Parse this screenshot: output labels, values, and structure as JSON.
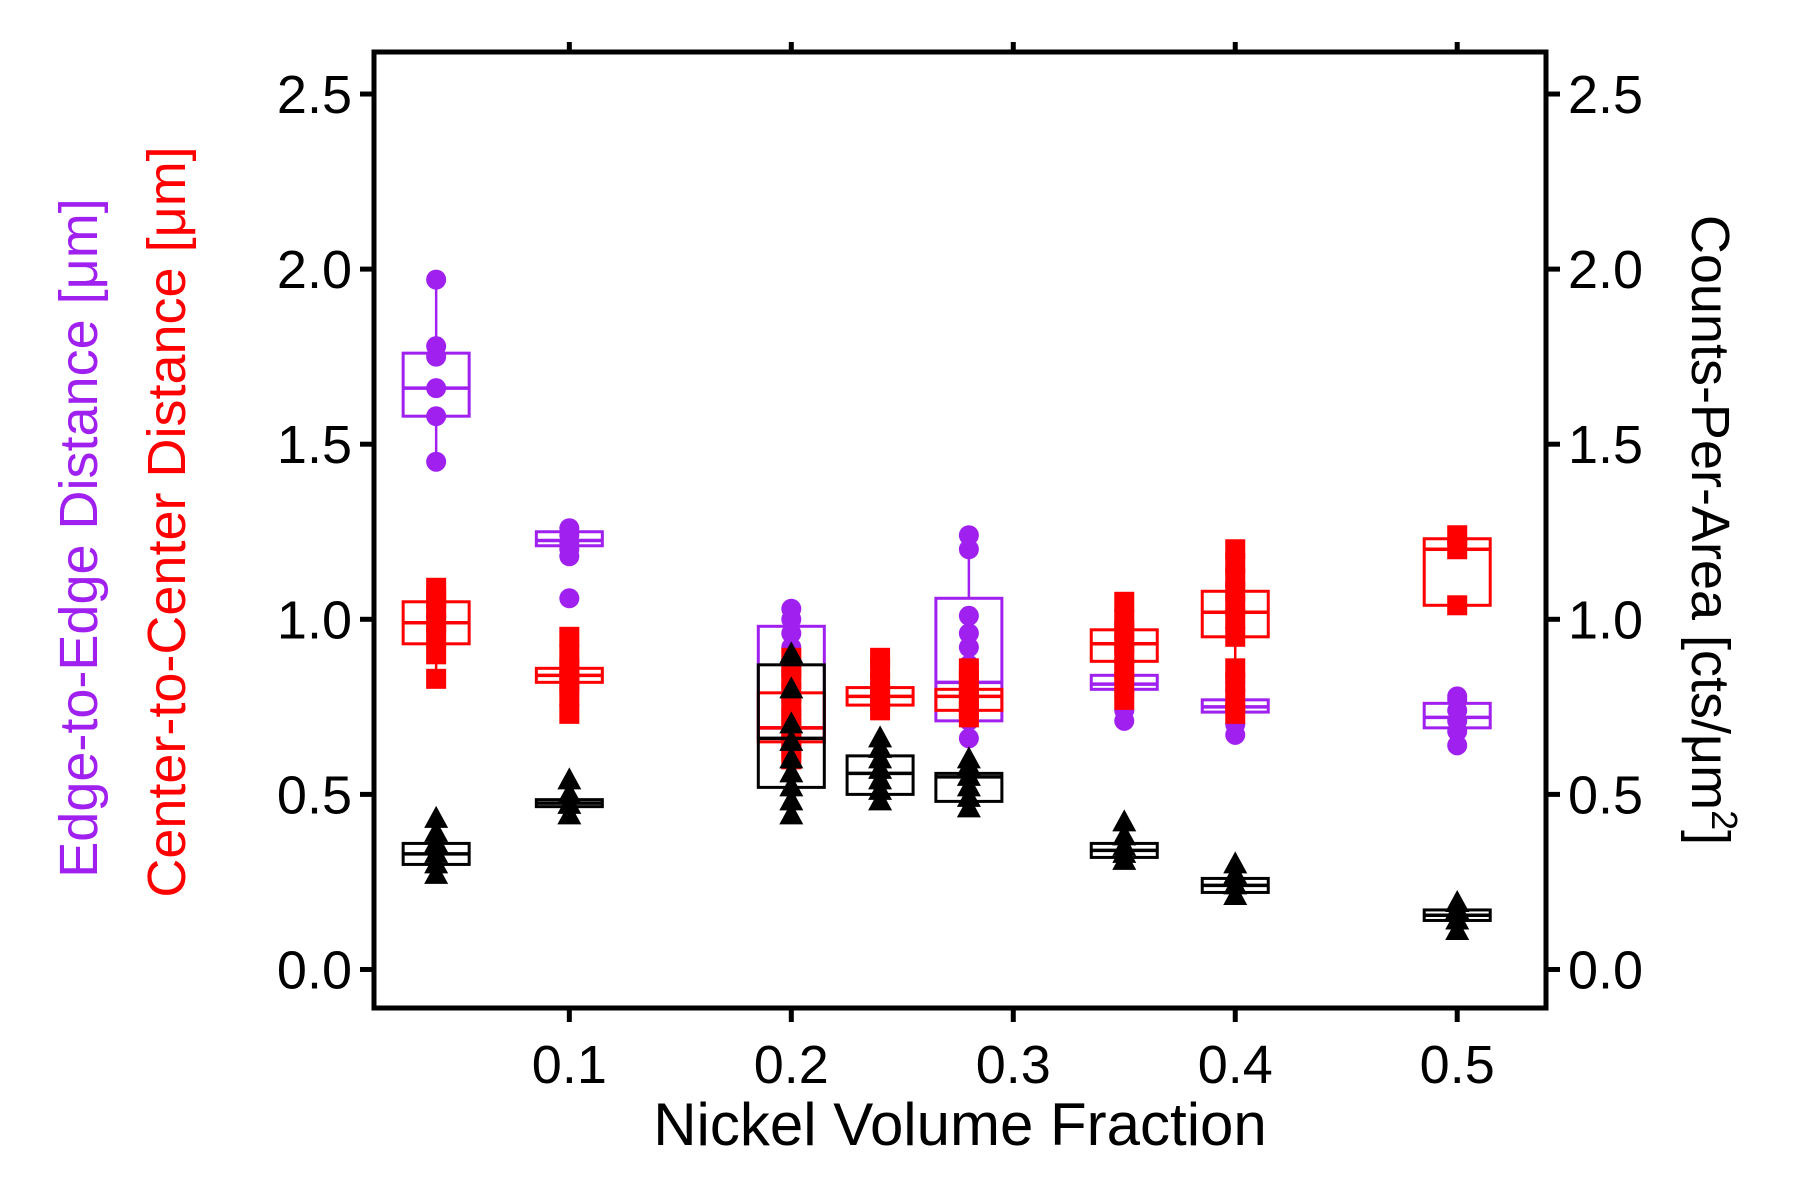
{
  "colors": {
    "edge": "#a020f0",
    "center": "#ff0000",
    "counts": "#000000",
    "frame": "#000000"
  },
  "labels": {
    "xlabel": "Nickel Volume Fraction",
    "ylabel_edge": "Edge-to-Edge Distance [μm]",
    "ylabel_center": "Center-to-Center Distance [μm]",
    "ylabel_right": "Counts-Per-Area [cts/μm",
    "ylabel_right_sup": "2",
    "ylabel_right_end": "]"
  },
  "chart_data": {
    "type": "box",
    "xlabel": "Nickel Volume Fraction",
    "ylabel_left": [
      "Edge-to-Edge Distance [μm]",
      "Center-to-Center Distance [μm]"
    ],
    "ylabel_right": "Counts-Per-Area [cts/μm2]",
    "xlim": [
      0.012,
      0.54
    ],
    "ylim": [
      -0.11,
      2.62
    ],
    "xticks": [
      0.1,
      0.2,
      0.3,
      0.4,
      0.5
    ],
    "xtick_labels": [
      "0.1",
      "0.2",
      "0.3",
      "0.4",
      "0.5"
    ],
    "yticks": [
      0.0,
      0.5,
      1.0,
      1.5,
      2.0,
      2.5
    ],
    "ytick_labels": [
      "0.0",
      "0.5",
      "1.0",
      "1.5",
      "2.0",
      "2.5"
    ],
    "grid": false,
    "series": [
      {
        "name": "Edge-to-Edge Distance [μm]",
        "color": "#a020f0",
        "marker": "circle",
        "boxes": [
          {
            "x": 0.04,
            "q1": 1.58,
            "median": 1.66,
            "q3": 1.76,
            "whisker_low": 1.45,
            "whisker_high": 1.97,
            "points": [
              1.45,
              1.58,
              1.66,
              1.75,
              1.78,
              1.97
            ]
          },
          {
            "x": 0.1,
            "q1": 1.21,
            "median": 1.225,
            "q3": 1.25,
            "whisker_low": 1.18,
            "whisker_high": 1.26,
            "points": [
              1.06,
              1.18,
              1.2,
              1.22,
              1.24,
              1.26
            ]
          },
          {
            "x": 0.2,
            "q1": 0.66,
            "median": 0.69,
            "q3": 0.98,
            "whisker_low": 0.59,
            "whisker_high": 1.03,
            "points": [
              0.88,
              0.92,
              0.96,
              1.0,
              1.03
            ]
          },
          {
            "x": 0.28,
            "q1": 0.71,
            "median": 0.82,
            "q3": 1.06,
            "whisker_low": 0.66,
            "whisker_high": 1.24,
            "points": [
              0.66,
              0.71,
              0.76,
              0.82,
              0.87,
              0.92,
              0.96,
              1.01,
              1.2,
              1.24
            ]
          },
          {
            "x": 0.35,
            "q1": 0.8,
            "median": 0.815,
            "q3": 0.84,
            "whisker_low": 0.71,
            "whisker_high": 0.86,
            "points": [
              0.71,
              0.74,
              0.78,
              0.8,
              0.82,
              0.86
            ]
          },
          {
            "x": 0.4,
            "q1": 0.735,
            "median": 0.75,
            "q3": 0.77,
            "whisker_low": 0.67,
            "whisker_high": 0.82,
            "points": [
              0.67,
              0.7,
              0.74,
              0.76,
              0.8,
              0.82
            ]
          },
          {
            "x": 0.5,
            "q1": 0.69,
            "median": 0.72,
            "q3": 0.76,
            "whisker_low": 0.64,
            "whisker_high": 0.78,
            "points": [
              0.64,
              0.68,
              0.71,
              0.74,
              0.77,
              0.78
            ]
          }
        ]
      },
      {
        "name": "Center-to-Center Distance [μm]",
        "color": "#ff0000",
        "marker": "square",
        "boxes": [
          {
            "x": 0.04,
            "q1": 0.93,
            "median": 0.99,
            "q3": 1.05,
            "whisker_low": 0.83,
            "whisker_high": 1.09,
            "points": [
              0.83,
              0.9,
              0.95,
              0.99,
              1.03,
              1.06,
              1.09
            ]
          },
          {
            "x": 0.1,
            "q1": 0.82,
            "median": 0.84,
            "q3": 0.86,
            "whisker_low": 0.73,
            "whisker_high": 0.95,
            "points": [
              0.73,
              0.78,
              0.82,
              0.84,
              0.86,
              0.9,
              0.95
            ]
          },
          {
            "x": 0.2,
            "q1": 0.65,
            "median": 0.69,
            "q3": 0.79,
            "whisker_low": 0.6,
            "whisker_high": 0.89,
            "points": [
              0.6,
              0.63,
              0.66,
              0.69,
              0.72,
              0.75,
              0.79,
              0.83,
              0.86,
              0.89
            ]
          },
          {
            "x": 0.24,
            "q1": 0.755,
            "median": 0.78,
            "q3": 0.805,
            "whisker_low": 0.74,
            "whisker_high": 0.89,
            "points": [
              0.74,
              0.77,
              0.79,
              0.82,
              0.86,
              0.89
            ]
          },
          {
            "x": 0.28,
            "q1": 0.74,
            "median": 0.78,
            "q3": 0.8,
            "whisker_low": 0.72,
            "whisker_high": 0.86,
            "points": [
              0.72,
              0.74,
              0.77,
              0.8,
              0.83,
              0.86
            ]
          },
          {
            "x": 0.35,
            "q1": 0.88,
            "median": 0.93,
            "q3": 0.97,
            "whisker_low": 0.77,
            "whisker_high": 1.05,
            "points": [
              0.77,
              0.82,
              0.86,
              0.9,
              0.93,
              0.97,
              1.0,
              1.05
            ]
          },
          {
            "x": 0.4,
            "q1": 0.95,
            "median": 1.02,
            "q3": 1.08,
            "whisker_low": 0.73,
            "whisker_high": 1.2,
            "points": [
              0.73,
              0.77,
              0.82,
              0.86,
              0.95,
              1.0,
              1.04,
              1.08,
              1.12,
              1.16,
              1.2
            ]
          },
          {
            "x": 0.5,
            "q1": 1.04,
            "median": 1.2,
            "q3": 1.23,
            "whisker_low": 1.04,
            "whisker_high": 1.24,
            "points": [
              1.04,
              1.2,
              1.24
            ]
          }
        ]
      },
      {
        "name": "Counts-Per-Area [cts/μm2]",
        "color": "#000000",
        "marker": "triangle",
        "boxes": [
          {
            "x": 0.04,
            "q1": 0.3,
            "median": 0.33,
            "q3": 0.36,
            "whisker_low": 0.27,
            "whisker_high": 0.43,
            "points": [
              0.27,
              0.3,
              0.33,
              0.36,
              0.39,
              0.43
            ]
          },
          {
            "x": 0.1,
            "q1": 0.465,
            "median": 0.475,
            "q3": 0.485,
            "whisker_low": 0.44,
            "whisker_high": 0.54,
            "points": [
              0.44,
              0.47,
              0.5,
              0.54
            ]
          },
          {
            "x": 0.2,
            "q1": 0.52,
            "median": 0.66,
            "q3": 0.87,
            "whisker_low": 0.44,
            "whisker_high": 0.9,
            "points": [
              0.44,
              0.48,
              0.52,
              0.56,
              0.6,
              0.65,
              0.7,
              0.8,
              0.9
            ]
          },
          {
            "x": 0.24,
            "q1": 0.5,
            "median": 0.56,
            "q3": 0.61,
            "whisker_low": 0.48,
            "whisker_high": 0.66,
            "points": [
              0.48,
              0.51,
              0.54,
              0.57,
              0.6,
              0.63,
              0.66
            ]
          },
          {
            "x": 0.28,
            "q1": 0.48,
            "median": 0.55,
            "q3": 0.56,
            "whisker_low": 0.46,
            "whisker_high": 0.6,
            "points": [
              0.46,
              0.49,
              0.52,
              0.55,
              0.58,
              0.6
            ]
          },
          {
            "x": 0.35,
            "q1": 0.32,
            "median": 0.34,
            "q3": 0.36,
            "whisker_low": 0.31,
            "whisker_high": 0.42,
            "points": [
              0.31,
              0.33,
              0.35,
              0.38,
              0.42
            ]
          },
          {
            "x": 0.4,
            "q1": 0.22,
            "median": 0.24,
            "q3": 0.26,
            "whisker_low": 0.21,
            "whisker_high": 0.3,
            "points": [
              0.21,
              0.24,
              0.27,
              0.3
            ]
          },
          {
            "x": 0.5,
            "q1": 0.14,
            "median": 0.155,
            "q3": 0.17,
            "whisker_low": 0.11,
            "whisker_high": 0.19,
            "points": [
              0.11,
              0.14,
              0.17,
              0.19
            ]
          }
        ]
      }
    ]
  }
}
